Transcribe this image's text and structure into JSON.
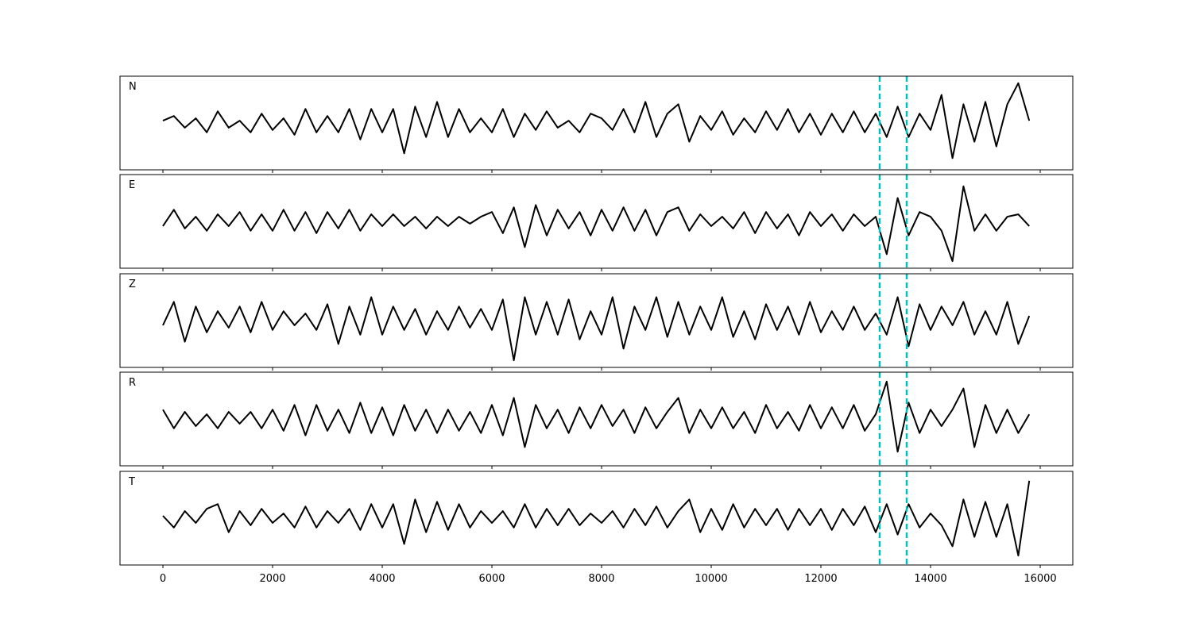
{
  "chart_data": [
    {
      "type": "line",
      "label": "N",
      "color": "#000000",
      "xlim": [
        -783,
        16594
      ],
      "ylim": [
        -1,
        1
      ],
      "vlines": [
        13072,
        13565
      ],
      "vline_color": "#00bfbf",
      "x": [
        0,
        200,
        400,
        600,
        800,
        1000,
        1200,
        1400,
        1600,
        1800,
        2000,
        2200,
        2400,
        2600,
        2800,
        3000,
        3200,
        3400,
        3600,
        3800,
        4000,
        4200,
        4400,
        4600,
        4800,
        5000,
        5200,
        5400,
        5600,
        5800,
        6000,
        6200,
        6400,
        6600,
        6800,
        7000,
        7200,
        7400,
        7600,
        7800,
        8000,
        8200,
        8400,
        8600,
        8800,
        9000,
        9200,
        9400,
        9600,
        9800,
        10000,
        10200,
        10400,
        10600,
        10800,
        11000,
        11200,
        11400,
        11600,
        11800,
        12000,
        12200,
        12400,
        12600,
        12800,
        13000,
        13200,
        13400,
        13600,
        13800,
        14000,
        14200,
        14400,
        14600,
        14800,
        15000,
        15200,
        15400,
        15600,
        15800
      ],
      "values": [
        0.05,
        0.15,
        -0.1,
        0.1,
        -0.2,
        0.25,
        -0.1,
        0.05,
        -0.2,
        0.2,
        -0.15,
        0.1,
        -0.25,
        0.3,
        -0.2,
        0.15,
        -0.2,
        0.3,
        -0.35,
        0.3,
        -0.2,
        0.3,
        -0.65,
        0.35,
        -0.3,
        0.45,
        -0.3,
        0.3,
        -0.2,
        0.1,
        -0.2,
        0.3,
        -0.3,
        0.2,
        -0.15,
        0.25,
        -0.1,
        0.05,
        -0.2,
        0.2,
        0.1,
        -0.15,
        0.3,
        -0.2,
        0.45,
        -0.3,
        0.2,
        0.4,
        -0.4,
        0.15,
        -0.15,
        0.25,
        -0.25,
        0.1,
        -0.2,
        0.25,
        -0.15,
        0.3,
        -0.2,
        0.2,
        -0.25,
        0.2,
        -0.2,
        0.25,
        -0.2,
        0.2,
        -0.3,
        0.35,
        -0.3,
        0.2,
        -0.15,
        0.6,
        -0.75,
        0.4,
        -0.4,
        0.45,
        -0.5,
        0.4,
        0.85,
        0.05
      ]
    },
    {
      "type": "line",
      "label": "E",
      "color": "#000000",
      "xlim": [
        -783,
        16594
      ],
      "ylim": [
        -1,
        1
      ],
      "vlines": [
        13072,
        13565
      ],
      "vline_color": "#00bfbf",
      "x": [
        0,
        200,
        400,
        600,
        800,
        1000,
        1200,
        1400,
        1600,
        1800,
        2000,
        2200,
        2400,
        2600,
        2800,
        3000,
        3200,
        3400,
        3600,
        3800,
        4000,
        4200,
        4400,
        4600,
        4800,
        5000,
        5200,
        5400,
        5600,
        5800,
        6000,
        6200,
        6400,
        6600,
        6800,
        7000,
        7200,
        7400,
        7600,
        7800,
        8000,
        8200,
        8400,
        8600,
        8800,
        9000,
        9200,
        9400,
        9600,
        9800,
        10000,
        10200,
        10400,
        10600,
        10800,
        11000,
        11200,
        11400,
        11600,
        11800,
        12000,
        12200,
        12400,
        12600,
        12800,
        13000,
        13200,
        13400,
        13600,
        13800,
        14000,
        14200,
        14400,
        14600,
        14800,
        15000,
        15200,
        15400,
        15600,
        15800
      ],
      "values": [
        -0.1,
        0.25,
        -0.15,
        0.1,
        -0.2,
        0.15,
        -0.1,
        0.2,
        -0.2,
        0.15,
        -0.2,
        0.25,
        -0.2,
        0.2,
        -0.25,
        0.2,
        -0.15,
        0.25,
        -0.2,
        0.15,
        -0.1,
        0.15,
        -0.1,
        0.1,
        -0.15,
        0.1,
        -0.1,
        0.1,
        -0.05,
        0.1,
        0.2,
        -0.25,
        0.3,
        -0.55,
        0.35,
        -0.3,
        0.25,
        -0.15,
        0.2,
        -0.3,
        0.25,
        -0.2,
        0.3,
        -0.2,
        0.25,
        -0.3,
        0.2,
        0.3,
        -0.2,
        0.15,
        -0.1,
        0.1,
        -0.15,
        0.2,
        -0.25,
        0.2,
        -0.15,
        0.15,
        -0.3,
        0.2,
        -0.1,
        0.15,
        -0.2,
        0.15,
        -0.1,
        0.1,
        -0.7,
        0.5,
        -0.3,
        0.2,
        0.1,
        -0.2,
        -0.85,
        0.75,
        -0.2,
        0.15,
        -0.2,
        0.1,
        0.15,
        -0.1
      ]
    },
    {
      "type": "line",
      "label": "Z",
      "color": "#000000",
      "xlim": [
        -783,
        16594
      ],
      "ylim": [
        -1,
        1
      ],
      "vlines": [
        13072,
        13565
      ],
      "vline_color": "#00bfbf",
      "x": [
        0,
        200,
        400,
        600,
        800,
        1000,
        1200,
        1400,
        1600,
        1800,
        2000,
        2200,
        2400,
        2600,
        2800,
        3000,
        3200,
        3400,
        3600,
        3800,
        4000,
        4200,
        4400,
        4600,
        4800,
        5000,
        5200,
        5400,
        5600,
        5800,
        6000,
        6200,
        6400,
        6600,
        6800,
        7000,
        7200,
        7400,
        7600,
        7800,
        8000,
        8200,
        8400,
        8600,
        8800,
        9000,
        9200,
        9400,
        9600,
        9800,
        10000,
        10200,
        10400,
        10600,
        10800,
        11000,
        11200,
        11400,
        11600,
        11800,
        12000,
        12200,
        12400,
        12600,
        12800,
        13000,
        13200,
        13400,
        13600,
        13800,
        14000,
        14200,
        14400,
        14600,
        14800,
        15000,
        15200,
        15400,
        15600,
        15800
      ],
      "values": [
        -0.1,
        0.4,
        -0.45,
        0.3,
        -0.25,
        0.2,
        -0.15,
        0.3,
        -0.25,
        0.4,
        -0.2,
        0.2,
        -0.1,
        0.15,
        -0.2,
        0.35,
        -0.5,
        0.3,
        -0.3,
        0.5,
        -0.3,
        0.3,
        -0.2,
        0.25,
        -0.3,
        0.2,
        -0.2,
        0.3,
        -0.15,
        0.25,
        -0.2,
        0.45,
        -0.85,
        0.5,
        -0.3,
        0.4,
        -0.3,
        0.45,
        -0.4,
        0.2,
        -0.3,
        0.5,
        -0.6,
        0.3,
        -0.2,
        0.5,
        -0.35,
        0.4,
        -0.3,
        0.3,
        -0.2,
        0.5,
        -0.35,
        0.2,
        -0.4,
        0.35,
        -0.2,
        0.3,
        -0.3,
        0.4,
        -0.25,
        0.2,
        -0.2,
        0.3,
        -0.2,
        0.15,
        -0.3,
        0.5,
        -0.55,
        0.35,
        -0.2,
        0.3,
        -0.1,
        0.4,
        -0.3,
        0.2,
        -0.3,
        0.4,
        -0.5,
        0.1
      ]
    },
    {
      "type": "line",
      "label": "R",
      "color": "#000000",
      "xlim": [
        -783,
        16594
      ],
      "ylim": [
        -1,
        1
      ],
      "vlines": [
        13072,
        13565
      ],
      "vline_color": "#00bfbf",
      "x": [
        0,
        200,
        400,
        600,
        800,
        1000,
        1200,
        1400,
        1600,
        1800,
        2000,
        2200,
        2400,
        2600,
        2800,
        3000,
        3200,
        3400,
        3600,
        3800,
        4000,
        4200,
        4400,
        4600,
        4800,
        5000,
        5200,
        5400,
        5600,
        5800,
        6000,
        6200,
        6400,
        6600,
        6800,
        7000,
        7200,
        7400,
        7600,
        7800,
        8000,
        8200,
        8400,
        8600,
        8800,
        9000,
        9200,
        9400,
        9600,
        9800,
        10000,
        10200,
        10400,
        10600,
        10800,
        11000,
        11200,
        11400,
        11600,
        11800,
        12000,
        12200,
        12400,
        12600,
        12800,
        13000,
        13200,
        13400,
        13600,
        13800,
        14000,
        14200,
        14400,
        14600,
        14800,
        15000,
        15200,
        15400,
        15600,
        15800
      ],
      "values": [
        0.2,
        -0.2,
        0.15,
        -0.15,
        0.1,
        -0.2,
        0.15,
        -0.1,
        0.15,
        -0.2,
        0.2,
        -0.25,
        0.3,
        -0.35,
        0.3,
        -0.25,
        0.2,
        -0.3,
        0.35,
        -0.3,
        0.25,
        -0.35,
        0.3,
        -0.25,
        0.2,
        -0.3,
        0.2,
        -0.25,
        0.15,
        -0.3,
        0.3,
        -0.35,
        0.45,
        -0.6,
        0.3,
        -0.2,
        0.2,
        -0.3,
        0.25,
        -0.2,
        0.3,
        -0.15,
        0.2,
        -0.3,
        0.25,
        -0.2,
        0.15,
        0.45,
        -0.3,
        0.2,
        -0.2,
        0.25,
        -0.2,
        0.15,
        -0.3,
        0.3,
        -0.2,
        0.15,
        -0.25,
        0.3,
        -0.2,
        0.25,
        -0.2,
        0.3,
        -0.25,
        0.1,
        0.8,
        -0.7,
        0.35,
        -0.3,
        0.2,
        -0.15,
        0.2,
        0.65,
        -0.6,
        0.3,
        -0.3,
        0.2,
        -0.3,
        0.1
      ]
    },
    {
      "type": "line",
      "label": "T",
      "color": "#000000",
      "xlim": [
        -783,
        16594
      ],
      "ylim": [
        -1,
        1
      ],
      "vlines": [
        13072,
        13565
      ],
      "vline_color": "#00bfbf",
      "x": [
        0,
        200,
        400,
        600,
        800,
        1000,
        1200,
        1400,
        1600,
        1800,
        2000,
        2200,
        2400,
        2600,
        2800,
        3000,
        3200,
        3400,
        3600,
        3800,
        4000,
        4200,
        4400,
        4600,
        4800,
        5000,
        5200,
        5400,
        5600,
        5800,
        6000,
        6200,
        6400,
        6600,
        6800,
        7000,
        7200,
        7400,
        7600,
        7800,
        8000,
        8200,
        8400,
        8600,
        8800,
        9000,
        9200,
        9400,
        9600,
        9800,
        10000,
        10200,
        10400,
        10600,
        10800,
        11000,
        11200,
        11400,
        11600,
        11800,
        12000,
        12200,
        12400,
        12600,
        12800,
        13000,
        13200,
        13400,
        13600,
        13800,
        14000,
        14200,
        14400,
        14600,
        14800,
        15000,
        15200,
        15400,
        15600,
        15800
      ],
      "values": [
        0.05,
        -0.2,
        0.15,
        -0.1,
        0.2,
        0.3,
        -0.3,
        0.15,
        -0.15,
        0.2,
        -0.1,
        0.1,
        -0.2,
        0.25,
        -0.2,
        0.15,
        -0.1,
        0.2,
        -0.25,
        0.3,
        -0.2,
        0.3,
        -0.55,
        0.4,
        -0.3,
        0.35,
        -0.25,
        0.3,
        -0.2,
        0.15,
        -0.1,
        0.15,
        -0.2,
        0.3,
        -0.2,
        0.2,
        -0.15,
        0.2,
        -0.15,
        0.1,
        -0.1,
        0.15,
        -0.2,
        0.2,
        -0.15,
        0.25,
        -0.2,
        0.15,
        0.4,
        -0.3,
        0.2,
        -0.25,
        0.3,
        -0.2,
        0.2,
        -0.15,
        0.2,
        -0.25,
        0.2,
        -0.15,
        0.2,
        -0.25,
        0.2,
        -0.15,
        0.25,
        -0.3,
        0.3,
        -0.35,
        0.3,
        -0.2,
        0.1,
        -0.15,
        -0.6,
        0.4,
        -0.4,
        0.35,
        -0.4,
        0.3,
        -0.8,
        0.8
      ],
      "xticks": [
        0,
        2000,
        4000,
        6000,
        8000,
        10000,
        12000,
        14000,
        16000
      ]
    }
  ]
}
